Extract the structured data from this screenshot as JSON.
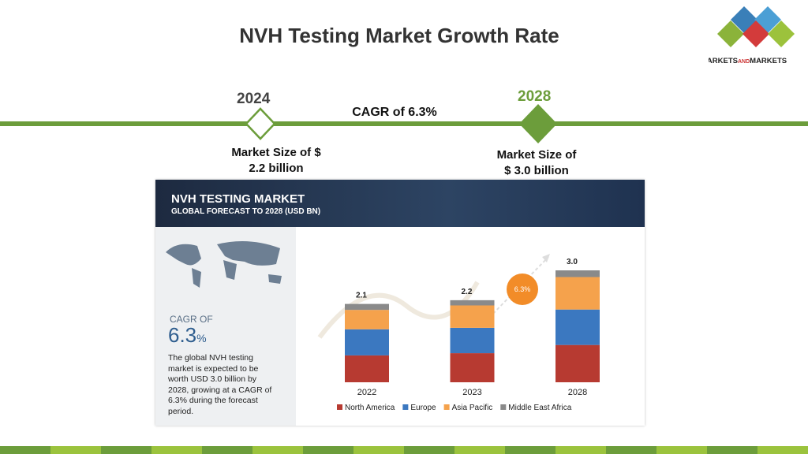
{
  "title": "NVH Testing Market Growth Rate",
  "logo": [
    "MARKETS",
    "AND",
    "MARKETS"
  ],
  "timeline": {
    "start_year": "2024",
    "end_year": "2028",
    "cagr": "CAGR of 6.3%",
    "start_size": [
      "Market Size of $",
      "2.2 billion"
    ],
    "end_size": [
      "Market Size of",
      "$ 3.0 billion"
    ]
  },
  "infographic": {
    "heading": "NVH TESTING MARKET",
    "subheading": "GLOBAL FORECAST TO 2028 (USD BN)",
    "cagr_label": "CAGR OF",
    "cagr_value": "6.3",
    "cagr_unit": "%",
    "badge": "6.3%",
    "description": [
      "The global NVH testing",
      "market is expected to be",
      "worth USD 3.0 billion by",
      "2028, growing at a CAGR of",
      "6.3% during the forecast",
      "period."
    ]
  },
  "chart_data": {
    "type": "stacked_bar",
    "categories": [
      "2022",
      "2023",
      "2028"
    ],
    "series": [
      {
        "name": "North America",
        "color": "#b73a31",
        "values": [
          0.72,
          0.78,
          1.0
        ]
      },
      {
        "name": "Europe",
        "color": "#3b78c0",
        "values": [
          0.7,
          0.68,
          0.95
        ]
      },
      {
        "name": "Asia Pacific",
        "color": "#f5a24c",
        "values": [
          0.52,
          0.6,
          0.87
        ]
      },
      {
        "name": "Middle East Africa",
        "color": "#8a8a8a",
        "values": [
          0.16,
          0.14,
          0.18
        ]
      }
    ],
    "totals": [
      2.1,
      2.2,
      3
    ],
    "total_labels": [
      "2.1",
      "2.2",
      "3.0"
    ]
  }
}
